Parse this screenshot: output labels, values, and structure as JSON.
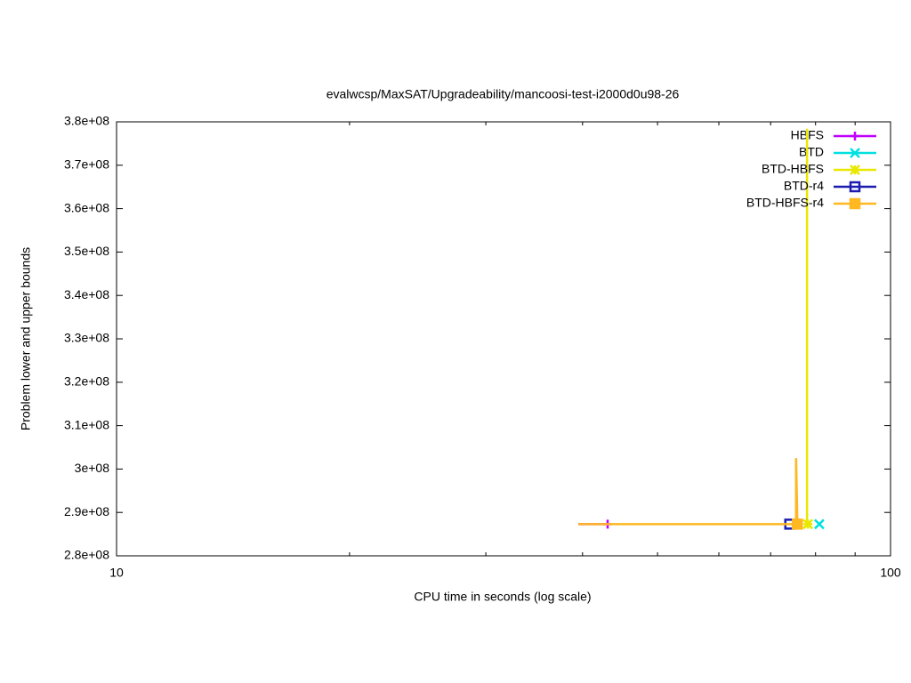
{
  "chart_data": {
    "type": "line",
    "title": "evalwcsp/MaxSAT/Upgradeability/mancoosi-test-i2000d0u98-26",
    "x_label": "CPU time in seconds (log scale)",
    "y_label": "Problem lower and upper bounds",
    "xscale": "log",
    "xlim": [
      10,
      100
    ],
    "xticks": [
      10,
      100
    ],
    "ylim": [
      280000000,
      380000000
    ],
    "yticks": [
      {
        "value": 280000000,
        "label": "2.8e+08"
      },
      {
        "value": 290000000,
        "label": "2.9e+08"
      },
      {
        "value": 300000000,
        "label": "3e+08"
      },
      {
        "value": 310000000,
        "label": "3.1e+08"
      },
      {
        "value": 320000000,
        "label": "3.2e+08"
      },
      {
        "value": 330000000,
        "label": "3.3e+08"
      },
      {
        "value": 340000000,
        "label": "3.4e+08"
      },
      {
        "value": 350000000,
        "label": "3.5e+08"
      },
      {
        "value": 360000000,
        "label": "3.6e+08"
      },
      {
        "value": 370000000,
        "label": "3.7e+08"
      },
      {
        "value": 380000000,
        "label": "3.8e+08"
      }
    ],
    "grid": false,
    "legend": "top-right",
    "series": [
      {
        "name": "HBFS",
        "color": "#c000ff",
        "marker": "plus",
        "x": [
          39.5,
          43.1
        ],
        "values": [
          287300000,
          287300000
        ]
      },
      {
        "name": "BTD",
        "color": "#00e0e0",
        "marker": "cross",
        "x": [
          80.9
        ],
        "values": [
          287300000
        ]
      },
      {
        "name": "BTD-HBFS",
        "color": "#e8e800",
        "marker": "star",
        "x": [
          78.0,
          78.0,
          78.2
        ],
        "values": [
          378400000,
          287300000,
          287300000
        ]
      },
      {
        "name": "BTD-r4",
        "color": "#1c1cb0",
        "marker": "open-square",
        "x": [
          74.1
        ],
        "values": [
          287300000
        ]
      },
      {
        "name": "BTD-HBFS-r4",
        "color": "#ffb820",
        "marker": "filled-square",
        "x": [
          39.5,
          75.5,
          75.5,
          75.8
        ],
        "values": [
          287300000,
          287300000,
          302500000,
          287300000
        ]
      }
    ]
  }
}
